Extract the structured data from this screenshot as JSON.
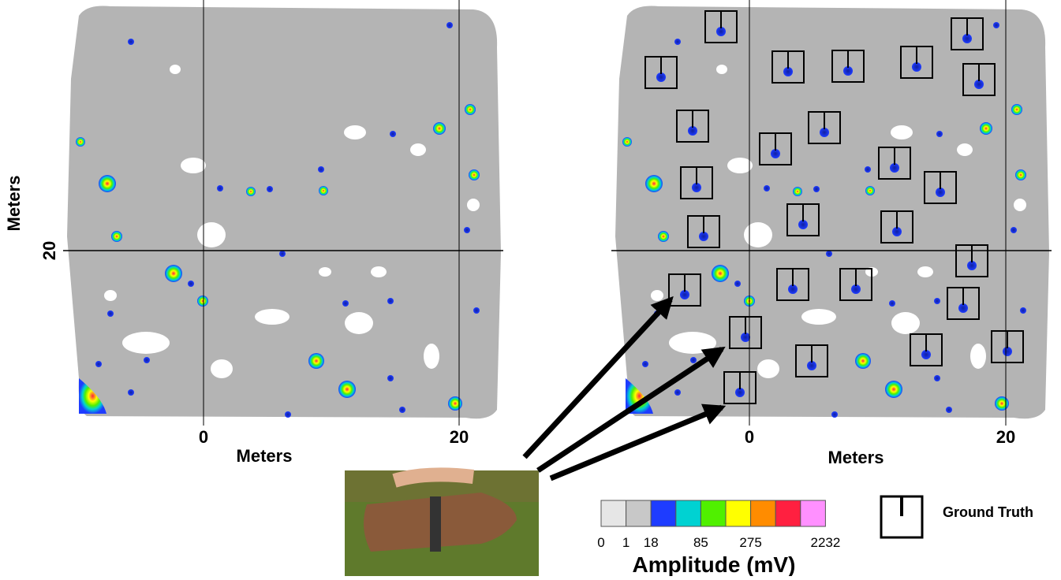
{
  "left_panel": {
    "y_label": "Meters",
    "y_tick": "20",
    "x_ticks": [
      "0",
      "20"
    ],
    "x_label": "Meters"
  },
  "right_panel": {
    "x_ticks": [
      "0",
      "20"
    ],
    "x_label": "Meters"
  },
  "colorbar": {
    "labels": [
      "0",
      "1",
      "18",
      "85",
      "275",
      "2232"
    ],
    "title": "Amplitude (mV)"
  },
  "legend": {
    "label": "Ground Truth"
  }
}
